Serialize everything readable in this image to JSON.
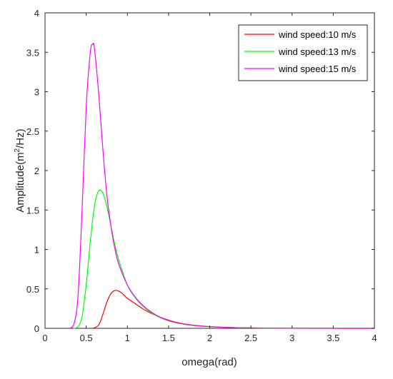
{
  "chart_data": {
    "type": "line",
    "title": "",
    "xlabel": "omega(rad)",
    "ylabel": {
      "before": "Amplitude(m",
      "sup": "2",
      "after": "/Hz)"
    },
    "xlim": [
      0,
      4
    ],
    "ylim": [
      0,
      4
    ],
    "x_ticks": [
      "0",
      "0.5",
      "1",
      "1.5",
      "2",
      "2.5",
      "3",
      "3.5",
      "4"
    ],
    "y_ticks": [
      "0",
      "0.5",
      "1",
      "1.5",
      "2",
      "2.5",
      "3",
      "3.5",
      "4"
    ],
    "grid": false,
    "legend_position": "top-right",
    "series": [
      {
        "name": "wind speed:10 m/s",
        "color": "#ff0000",
        "x": [
          0.58,
          0.65,
          0.7,
          0.75,
          0.8,
          0.85,
          0.9,
          0.95,
          1.0,
          1.1,
          1.2,
          1.3,
          1.4,
          1.5,
          1.6,
          1.7,
          1.8,
          1.9,
          2.0,
          2.2,
          2.4,
          2.6,
          2.8,
          3.0,
          3.5,
          4.0
        ],
        "y": [
          0.0,
          0.04,
          0.17,
          0.33,
          0.44,
          0.48,
          0.47,
          0.43,
          0.38,
          0.31,
          0.24,
          0.185,
          0.14,
          0.105,
          0.075,
          0.055,
          0.04,
          0.03,
          0.022,
          0.012,
          0.007,
          0.004,
          0.002,
          0.001,
          0.0,
          0.0
        ]
      },
      {
        "name": "wind speed:13 m/s",
        "color": "#00ff00",
        "x": [
          0.35,
          0.4,
          0.45,
          0.5,
          0.55,
          0.6,
          0.65,
          0.7,
          0.75,
          0.8,
          0.85,
          0.9,
          1.0,
          1.1,
          1.2,
          1.3,
          1.4,
          1.5,
          1.6,
          1.7,
          1.8,
          2.0,
          2.2,
          2.5,
          3.0,
          3.5,
          4.0
        ],
        "y": [
          0.0,
          0.02,
          0.15,
          0.55,
          1.1,
          1.55,
          1.74,
          1.72,
          1.55,
          1.3,
          1.05,
          0.85,
          0.55,
          0.38,
          0.27,
          0.19,
          0.135,
          0.095,
          0.068,
          0.05,
          0.036,
          0.02,
          0.011,
          0.005,
          0.001,
          0.0,
          0.0
        ]
      },
      {
        "name": "wind speed:15 m/s",
        "color": "#ff00ff",
        "x": [
          0.3,
          0.35,
          0.4,
          0.45,
          0.5,
          0.55,
          0.58,
          0.6,
          0.65,
          0.7,
          0.75,
          0.8,
          0.85,
          0.9,
          1.0,
          1.1,
          1.2,
          1.3,
          1.4,
          1.5,
          1.6,
          1.7,
          1.8,
          2.0,
          2.2,
          2.5,
          3.0,
          3.5,
          4.0
        ],
        "y": [
          0.0,
          0.05,
          0.4,
          1.5,
          2.8,
          3.5,
          3.6,
          3.55,
          3.0,
          2.3,
          1.7,
          1.3,
          1.0,
          0.8,
          0.55,
          0.39,
          0.28,
          0.2,
          0.14,
          0.1,
          0.072,
          0.052,
          0.038,
          0.021,
          0.012,
          0.005,
          0.0015,
          0.0005,
          0.0
        ]
      }
    ]
  }
}
